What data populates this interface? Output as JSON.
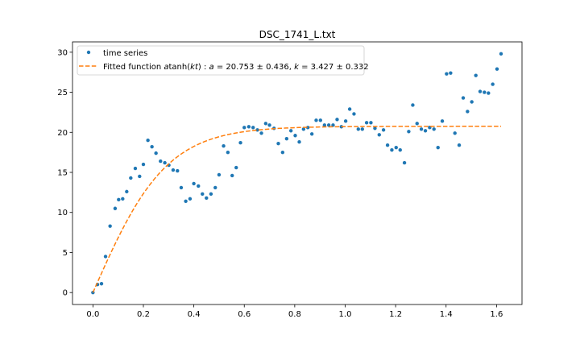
{
  "chart_data": {
    "type": "scatter",
    "title": "DSC_1741_L.txt",
    "xlabel": "",
    "ylabel": "",
    "xlim": [
      -0.081,
      1.701
    ],
    "ylim": [
      -1.49,
      31.29
    ],
    "xticks": [
      0.0,
      0.2,
      0.4,
      0.6,
      0.8,
      1.0,
      1.2,
      1.4,
      1.6
    ],
    "xtick_labels": [
      "0.0",
      "0.2",
      "0.4",
      "0.6",
      "0.8",
      "1.0",
      "1.2",
      "1.4",
      "1.6"
    ],
    "yticks": [
      0,
      5,
      10,
      15,
      20,
      25,
      30
    ],
    "ytick_labels": [
      "0",
      "5",
      "10",
      "15",
      "20",
      "25",
      "30"
    ],
    "grid": false,
    "legend_position": "top-left",
    "series": [
      {
        "name": "time series",
        "kind": "scatter",
        "color": "#1f77b4",
        "points": [
          [
            0.0,
            0.0
          ],
          [
            0.018,
            1.0
          ],
          [
            0.034,
            1.1
          ],
          [
            0.05,
            4.5
          ],
          [
            0.068,
            8.3
          ],
          [
            0.088,
            10.5
          ],
          [
            0.102,
            11.6
          ],
          [
            0.118,
            11.7
          ],
          [
            0.134,
            12.6
          ],
          [
            0.15,
            14.3
          ],
          [
            0.168,
            15.5
          ],
          [
            0.185,
            14.5
          ],
          [
            0.2,
            16.0
          ],
          [
            0.218,
            19.0
          ],
          [
            0.234,
            18.2
          ],
          [
            0.25,
            17.4
          ],
          [
            0.268,
            16.4
          ],
          [
            0.285,
            16.2
          ],
          [
            0.301,
            15.9
          ],
          [
            0.318,
            15.3
          ],
          [
            0.335,
            15.2
          ],
          [
            0.35,
            13.1
          ],
          [
            0.368,
            11.4
          ],
          [
            0.385,
            11.7
          ],
          [
            0.4,
            13.6
          ],
          [
            0.418,
            13.3
          ],
          [
            0.434,
            12.3
          ],
          [
            0.45,
            11.8
          ],
          [
            0.468,
            12.3
          ],
          [
            0.485,
            13.1
          ],
          [
            0.5,
            14.7
          ],
          [
            0.518,
            18.3
          ],
          [
            0.535,
            17.5
          ],
          [
            0.552,
            14.6
          ],
          [
            0.568,
            15.6
          ],
          [
            0.585,
            18.7
          ],
          [
            0.6,
            20.6
          ],
          [
            0.618,
            20.7
          ],
          [
            0.635,
            20.6
          ],
          [
            0.652,
            20.3
          ],
          [
            0.668,
            19.9
          ],
          [
            0.685,
            21.1
          ],
          [
            0.7,
            20.9
          ],
          [
            0.718,
            20.5
          ],
          [
            0.735,
            18.6
          ],
          [
            0.752,
            17.5
          ],
          [
            0.768,
            19.2
          ],
          [
            0.785,
            20.2
          ],
          [
            0.802,
            19.6
          ],
          [
            0.818,
            18.8
          ],
          [
            0.835,
            20.4
          ],
          [
            0.852,
            20.6
          ],
          [
            0.868,
            19.8
          ],
          [
            0.885,
            21.5
          ],
          [
            0.902,
            21.5
          ],
          [
            0.918,
            20.9
          ],
          [
            0.935,
            20.9
          ],
          [
            0.952,
            20.9
          ],
          [
            0.968,
            21.6
          ],
          [
            0.985,
            20.7
          ],
          [
            1.002,
            21.4
          ],
          [
            1.018,
            22.9
          ],
          [
            1.035,
            22.3
          ],
          [
            1.052,
            20.4
          ],
          [
            1.068,
            20.4
          ],
          [
            1.085,
            21.2
          ],
          [
            1.102,
            21.2
          ],
          [
            1.118,
            20.5
          ],
          [
            1.135,
            19.7
          ],
          [
            1.152,
            20.3
          ],
          [
            1.168,
            18.4
          ],
          [
            1.185,
            17.8
          ],
          [
            1.202,
            18.1
          ],
          [
            1.218,
            17.8
          ],
          [
            1.235,
            16.2
          ],
          [
            1.252,
            20.1
          ],
          [
            1.268,
            23.4
          ],
          [
            1.285,
            21.1
          ],
          [
            1.302,
            20.4
          ],
          [
            1.318,
            20.2
          ],
          [
            1.335,
            20.6
          ],
          [
            1.352,
            20.4
          ],
          [
            1.368,
            18.1
          ],
          [
            1.385,
            21.4
          ],
          [
            1.402,
            27.3
          ],
          [
            1.418,
            27.4
          ],
          [
            1.435,
            19.9
          ],
          [
            1.452,
            18.4
          ],
          [
            1.468,
            24.3
          ],
          [
            1.485,
            22.6
          ],
          [
            1.502,
            23.8
          ],
          [
            1.518,
            27.1
          ],
          [
            1.535,
            25.1
          ],
          [
            1.552,
            25.0
          ],
          [
            1.568,
            24.9
          ],
          [
            1.585,
            26.0
          ],
          [
            1.602,
            27.9
          ],
          [
            1.618,
            29.8
          ]
        ]
      },
      {
        "name": "Fitted function atanh(kt) : a = 20.753 ± 0.436, k = 3.427 ± 0.332",
        "kind": "line",
        "style": "dashed",
        "color": "#ff7f0e",
        "function": "a*tanh(k*t)",
        "params": {
          "a": 20.753,
          "k": 3.427
        },
        "x_range": [
          0.0,
          1.618
        ]
      }
    ]
  }
}
